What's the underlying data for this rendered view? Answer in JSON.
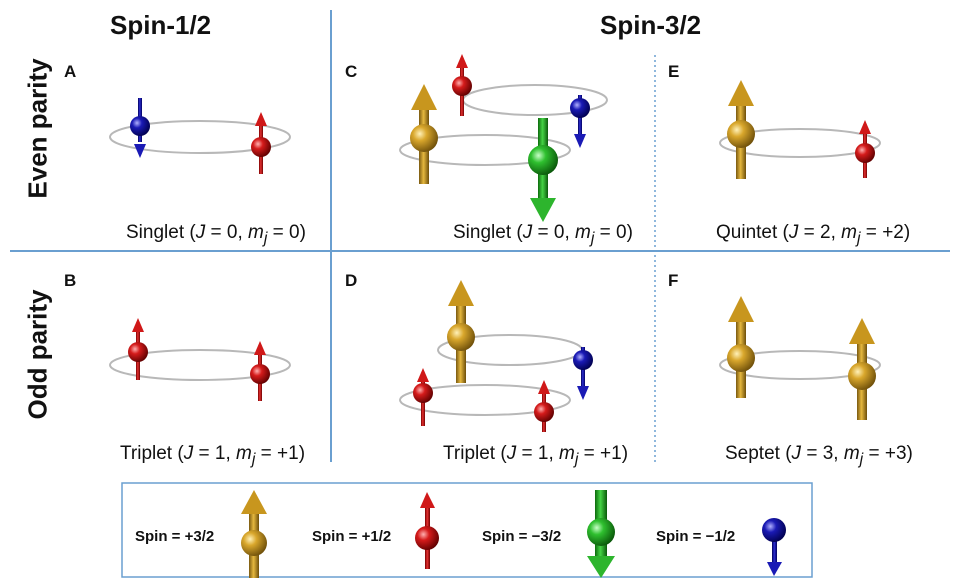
{
  "columns": {
    "spin_half": "Spin-1/2",
    "spin_three_half": "Spin-3/2"
  },
  "rows": {
    "even": "Even parity",
    "odd": "Odd parity"
  },
  "panels": [
    {
      "letter": "A",
      "state": "Singlet",
      "j": "0",
      "mj": "0"
    },
    {
      "letter": "B",
      "state": "Triplet",
      "j": "1",
      "mj": "+1"
    },
    {
      "letter": "C",
      "state": "Singlet",
      "j": "0",
      "mj": "0"
    },
    {
      "letter": "D",
      "state": "Triplet",
      "j": "1",
      "mj": "+1"
    },
    {
      "letter": "E",
      "state": "Quintet",
      "j": "2",
      "mj": "+2"
    },
    {
      "letter": "F",
      "state": "Septet",
      "j": "3",
      "mj": "+3"
    }
  ],
  "symbols": {
    "J": "J",
    "m": "m",
    "sub": "j"
  },
  "legend": [
    {
      "label": "Spin = +3/2",
      "color": "#c8961e"
    },
    {
      "label": "Spin = +1/2",
      "color": "#d01818"
    },
    {
      "label": "Spin = −3/2",
      "color": "#2db52d"
    },
    {
      "label": "Spin = −1/2",
      "color": "#1515a8"
    }
  ],
  "colors": {
    "divider": "#6a9fd0",
    "orbit": "#b8b8b8"
  }
}
